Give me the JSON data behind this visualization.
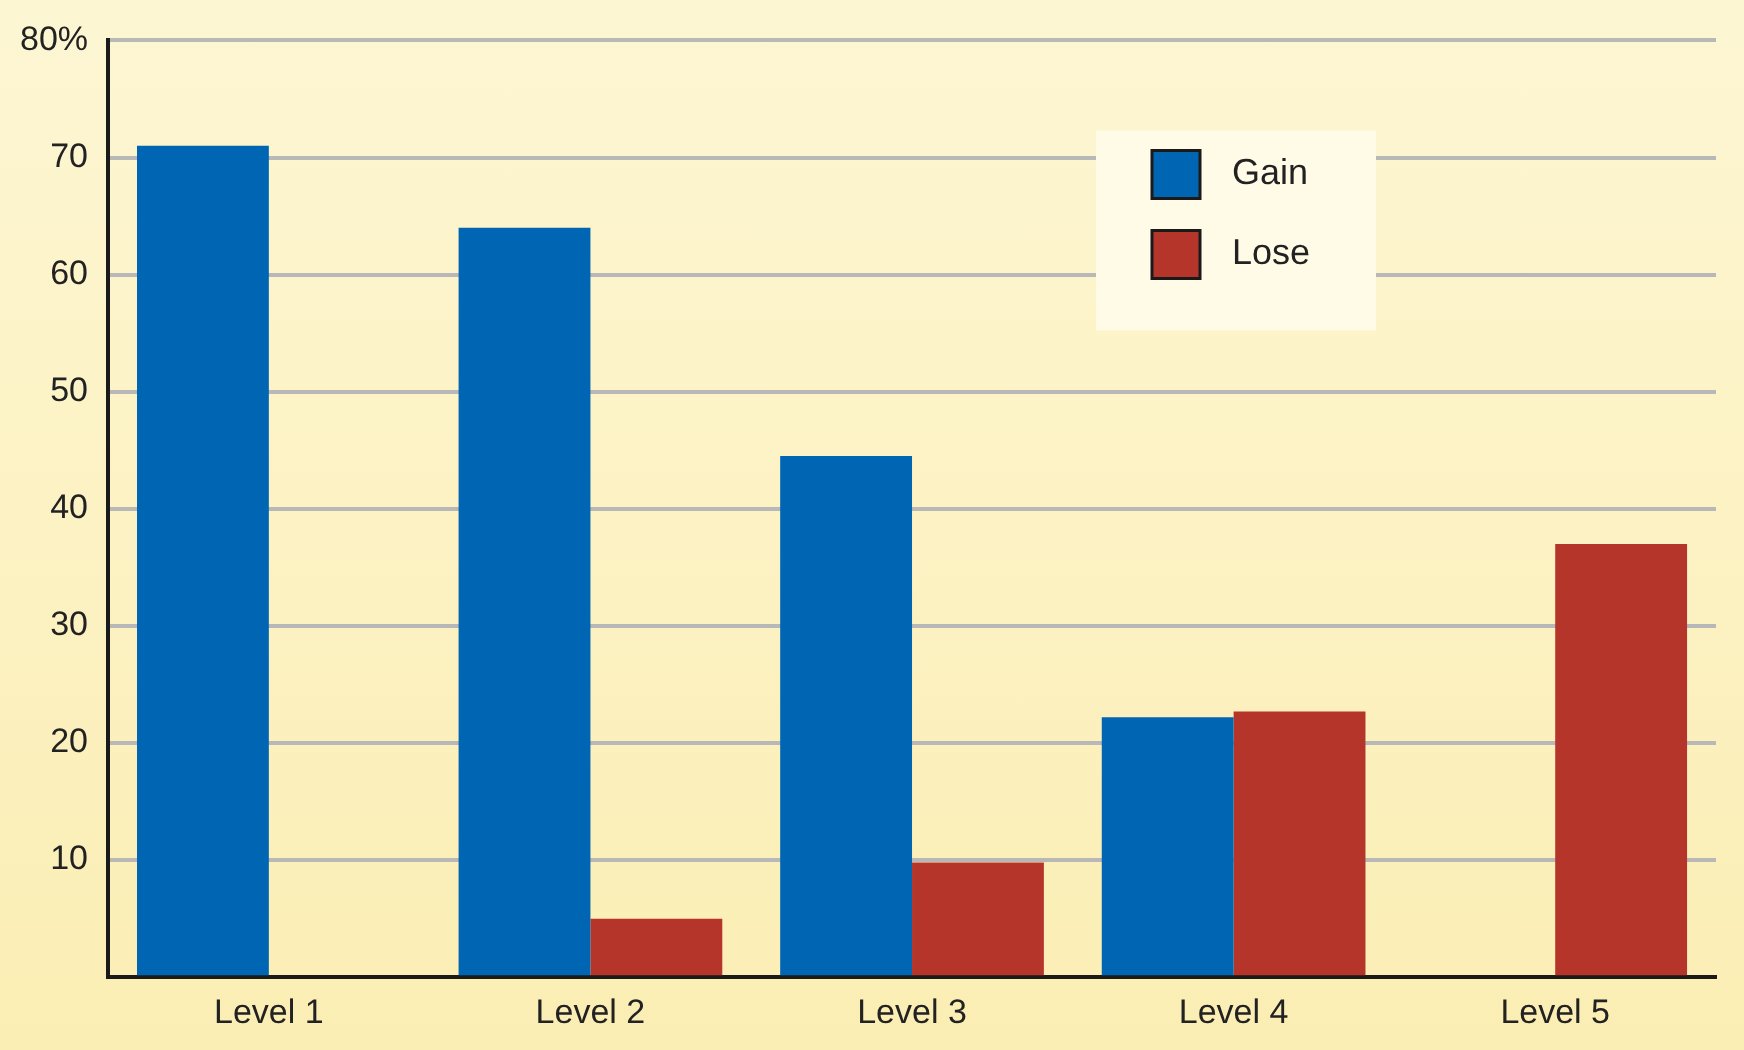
{
  "chart_data": {
    "type": "bar",
    "categories": [
      "Level 1",
      "Level 2",
      "Level 3",
      "Level 4",
      "Level 5"
    ],
    "series": [
      {
        "name": "Gain",
        "color": "#0066b3",
        "values": [
          71,
          64,
          44.5,
          22.2,
          null
        ]
      },
      {
        "name": "Lose",
        "color": "#b5352a",
        "values": [
          null,
          5,
          9.8,
          22.7,
          37
        ]
      }
    ],
    "ylim": [
      0,
      80
    ],
    "yticks": [
      {
        "value": 0,
        "label": null
      },
      10,
      20,
      30,
      40,
      50,
      60,
      70,
      {
        "value": 80,
        "label": "80%"
      }
    ],
    "grid": "y",
    "legend": "top right"
  }
}
